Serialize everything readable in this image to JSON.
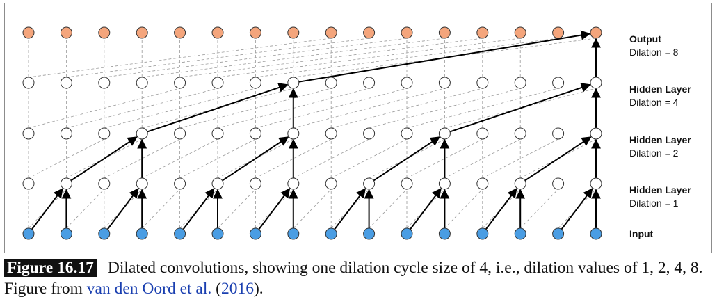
{
  "diagram": {
    "layers": [
      {
        "id": "output",
        "title": "Output",
        "dilation_text": "Dilation = 8",
        "dilation": 8,
        "node_color": "#f4a57c"
      },
      {
        "id": "hidden4",
        "title": "Hidden Layer",
        "dilation_text": "Dilation = 4",
        "dilation": 4,
        "node_color": "#ffffff"
      },
      {
        "id": "hidden2",
        "title": "Hidden Layer",
        "dilation_text": "Dilation = 2",
        "dilation": 2,
        "node_color": "#ffffff"
      },
      {
        "id": "hidden1",
        "title": "Hidden Layer",
        "dilation_text": "Dilation = 1",
        "dilation": 1,
        "node_color": "#ffffff"
      },
      {
        "id": "input",
        "title": "Input",
        "dilation_text": "",
        "dilation": 0,
        "node_color": "#4a9de3"
      }
    ],
    "nodes_per_layer": 16,
    "colors": {
      "output_node": "#f4a57c",
      "hidden_node": "#ffffff",
      "input_node": "#4a9de3",
      "node_stroke": "#333333",
      "arrow": "#000000",
      "dashed": "#9a9a9a"
    }
  },
  "caption": {
    "figure_number": "Figure 16.17",
    "text": "Dilated convolutions, showing one dilation cycle size of 4, i.e., dilation values of 1, 2, 4, 8. Figure from ",
    "citation_authors": "van den Oord et al.",
    "citation_year_open": " (",
    "citation_year": "2016",
    "citation_year_close": ")."
  }
}
